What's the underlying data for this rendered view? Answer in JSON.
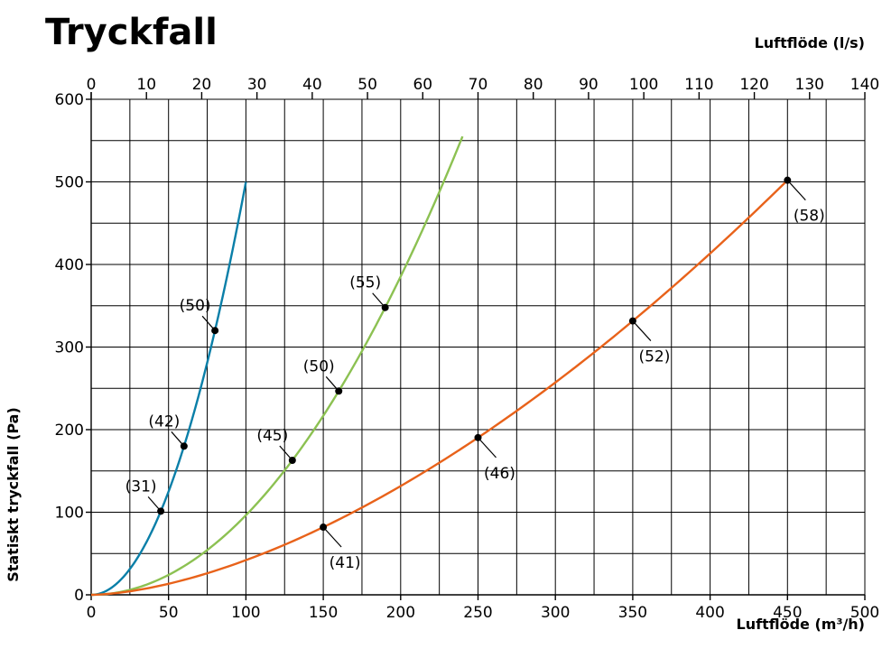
{
  "chart_data": {
    "type": "line",
    "title": "Tryckfall",
    "xlabel": "Luftflöde (m³/h)",
    "x2label": "Luftflöde (l/s)",
    "ylabel": "Statiskt tryckfall (Pa)",
    "xlim": [
      0,
      500
    ],
    "x2lim": [
      0,
      140
    ],
    "ylim": [
      0,
      600
    ],
    "xticks": [
      0,
      50,
      100,
      150,
      200,
      250,
      300,
      350,
      400,
      450,
      500
    ],
    "x2ticks": [
      0,
      10,
      20,
      30,
      40,
      50,
      60,
      70,
      80,
      90,
      100,
      110,
      120,
      130,
      140
    ],
    "yticks": [
      0,
      100,
      200,
      300,
      400,
      500,
      600
    ],
    "grid": true,
    "colors": {
      "blue": "#0a7fa8",
      "green": "#8cc152",
      "orange": "#e8621a"
    },
    "series": [
      {
        "color": "blue",
        "exponent": 2,
        "end": {
          "x": 100,
          "y": 500
        },
        "points": [
          {
            "x": 45,
            "y": 127,
            "label": "(31)"
          },
          {
            "x": 60,
            "y": 210,
            "label": "(42)"
          },
          {
            "x": 80,
            "y": 339,
            "label": "(50)"
          }
        ]
      },
      {
        "color": "green",
        "exponent": 2,
        "end": {
          "x": 240,
          "y": 555
        },
        "points": [
          {
            "x": 130,
            "y": 157,
            "label": "(45)"
          },
          {
            "x": 160,
            "y": 237,
            "label": "(50)"
          },
          {
            "x": 190,
            "y": 339,
            "label": "(55)"
          }
        ]
      },
      {
        "color": "orange",
        "exponent": 1.65,
        "end": {
          "x": 450,
          "y": 502
        },
        "points": [
          {
            "x": 150,
            "y": 76,
            "label": "(41)"
          },
          {
            "x": 250,
            "y": 177,
            "label": "(46)"
          },
          {
            "x": 350,
            "y": 318,
            "label": "(52)"
          },
          {
            "x": 450,
            "y": 502,
            "label": "(58)"
          }
        ]
      }
    ]
  }
}
